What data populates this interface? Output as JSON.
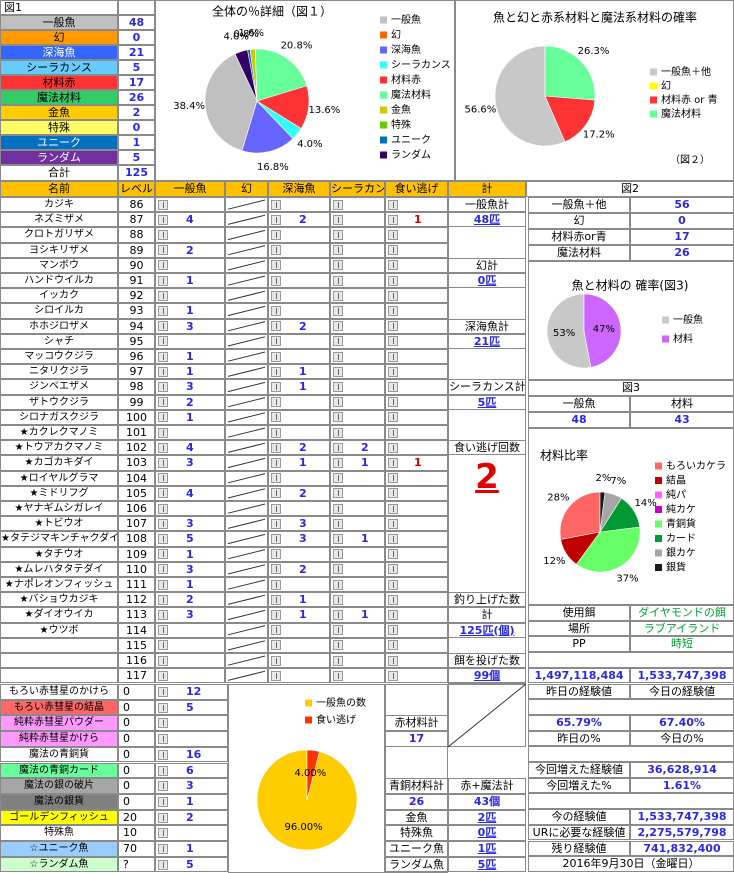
{
  "fig1": {
    "title": "図1",
    "rows": [
      {
        "label": "一般魚",
        "value": 48
      },
      {
        "label": "幻",
        "value": 0
      },
      {
        "label": "深海魚",
        "value": 21
      },
      {
        "label": "シーラカンス",
        "value": 5
      },
      {
        "label": "材料赤",
        "value": 17
      },
      {
        "label": "魔法材料",
        "value": 26
      },
      {
        "label": "金魚",
        "value": 2
      },
      {
        "label": "特殊",
        "value": 0
      },
      {
        "label": "ユニーク",
        "value": 1
      },
      {
        "label": "ランダム",
        "value": 5
      }
    ],
    "total_label": "合計",
    "total": 125
  },
  "chart_data": [
    {
      "type": "pie",
      "title": "全体の％詳細（図１）",
      "categories": [
        "一般魚",
        "幻",
        "深海魚",
        "シーラカンス",
        "材料赤",
        "魔法材料",
        "金魚",
        "特殊",
        "ユニーク",
        "ランダム"
      ],
      "values": [
        38.4,
        0,
        16.8,
        4,
        13.6,
        20.8,
        1.6,
        0,
        0.8,
        4
      ],
      "value_labels": [
        "38.4%",
        null,
        "16.8%",
        "4.0%",
        "13.6%",
        "20.8%",
        "1.6%",
        null,
        "0.8%",
        "4.0%"
      ],
      "colors": [
        "#c0c0c0",
        "#ff6600",
        "#6666ff",
        "#33ffff",
        "#ff3333",
        "#66ff99",
        "#cccc00",
        "#66cc00",
        "#0070c0",
        "#330066"
      ]
    },
    {
      "type": "pie",
      "title": "魚と幻と赤系材料と魔法系材料の確率",
      "annotation": "（図２）",
      "categories": [
        "一般魚＋他",
        "幻",
        "材料赤 or 青",
        "魔法材料"
      ],
      "values": [
        56.6,
        0,
        17.2,
        26.3
      ],
      "value_labels": [
        "56.6%",
        null,
        "17.2%",
        "26.3%"
      ],
      "colors": [
        "#c8c8c8",
        "#ffff00",
        "#ff3333",
        "#66ff99"
      ]
    },
    {
      "type": "pie",
      "title": "魚と材料の 確率(図3)",
      "categories": [
        "一般魚",
        "材料"
      ],
      "values": [
        53,
        47
      ],
      "value_labels": [
        "53%",
        "47%"
      ],
      "colors": [
        "#c8c8c8",
        "#cc66ff"
      ]
    },
    {
      "type": "pie",
      "title": "材料比率",
      "categories": [
        "もろいカケラ",
        "結晶",
        "純パ",
        "純カケ",
        "青銅貨",
        "カード",
        "銀カケ",
        "銀貨"
      ],
      "values": [
        28,
        12,
        0,
        0,
        37,
        14,
        7,
        2
      ],
      "value_labels": [
        "28%",
        "12%",
        null,
        null,
        "37%",
        "14%",
        "7%",
        "2%"
      ],
      "colors": [
        "#ff6666",
        "#c00000",
        "#ff66ff",
        "#cc00cc",
        "#66ff66",
        "#009933",
        "#a6a6a6",
        "#1a1a1a"
      ]
    },
    {
      "type": "pie",
      "categories": [
        "一般魚の数",
        "食い逃げ"
      ],
      "values": [
        96,
        4
      ],
      "value_labels": [
        "96.00%",
        "4.00%"
      ],
      "colors": [
        "#ffcc00",
        "#ff3300"
      ]
    }
  ],
  "main_table": {
    "headers": [
      "名前",
      "レベル",
      "一般魚",
      "幻",
      "深海魚",
      "シーラカンス",
      "食い逃げ",
      "計"
    ],
    "rows": [
      {
        "name": "カジキ",
        "level": 86,
        "counts": [
          null,
          null,
          null,
          null
        ]
      },
      {
        "name": "ネズミザメ",
        "level": 87,
        "counts": [
          4,
          2,
          null,
          1
        ]
      },
      {
        "name": "クロトガリザメ",
        "level": 88,
        "counts": [
          null,
          null,
          null,
          null
        ]
      },
      {
        "name": "ヨシキリザメ",
        "level": 89,
        "counts": [
          2,
          null,
          null,
          null
        ]
      },
      {
        "name": "マンボウ",
        "level": 90,
        "counts": [
          null,
          null,
          null,
          null
        ]
      },
      {
        "name": "ハンドウイルカ",
        "level": 91,
        "counts": [
          1,
          null,
          null,
          null
        ]
      },
      {
        "name": "イッカク",
        "level": 92,
        "counts": [
          null,
          null,
          null,
          null
        ]
      },
      {
        "name": "シロイルカ",
        "level": 93,
        "counts": [
          1,
          null,
          null,
          null
        ]
      },
      {
        "name": "ホホジロザメ",
        "level": 94,
        "counts": [
          3,
          2,
          null,
          null
        ]
      },
      {
        "name": "シャチ",
        "level": 95,
        "counts": [
          null,
          null,
          null,
          null
        ]
      },
      {
        "name": "マッコウクジラ",
        "level": 96,
        "counts": [
          1,
          null,
          null,
          null
        ]
      },
      {
        "name": "ニタリクジラ",
        "level": 97,
        "counts": [
          1,
          1,
          null,
          null
        ]
      },
      {
        "name": "ジンベエザメ",
        "level": 98,
        "counts": [
          3,
          1,
          null,
          null
        ]
      },
      {
        "name": "ザトウクジラ",
        "level": 99,
        "counts": [
          2,
          null,
          null,
          null
        ]
      },
      {
        "name": "シロナガスクジラ",
        "level": 100,
        "counts": [
          1,
          null,
          null,
          null
        ]
      },
      {
        "name": "★カクレクマノミ",
        "level": 101,
        "counts": [
          null,
          null,
          null,
          null
        ]
      },
      {
        "name": "★トウアカクマノミ",
        "level": 102,
        "counts": [
          4,
          2,
          2,
          null
        ]
      },
      {
        "name": "★カゴカキダイ",
        "level": 103,
        "counts": [
          3,
          1,
          1,
          1
        ]
      },
      {
        "name": "★ロイヤルグラマ",
        "level": 104,
        "counts": [
          null,
          null,
          null,
          null
        ]
      },
      {
        "name": "★ミドリフグ",
        "level": 105,
        "counts": [
          4,
          2,
          null,
          null
        ]
      },
      {
        "name": "★ヤナギムシガレイ",
        "level": 106,
        "counts": [
          null,
          null,
          null,
          null
        ]
      },
      {
        "name": "★トビウオ",
        "level": 107,
        "counts": [
          3,
          3,
          null,
          null
        ]
      },
      {
        "name": "★タテジマキンチャクダイ",
        "level": 108,
        "counts": [
          5,
          3,
          1,
          null
        ]
      },
      {
        "name": "★タチウオ",
        "level": 109,
        "counts": [
          1,
          null,
          null,
          null
        ]
      },
      {
        "name": "★ムレハタタテダイ",
        "level": 110,
        "counts": [
          3,
          2,
          null,
          null
        ]
      },
      {
        "name": "★ナポレオンフィッシュ",
        "level": 111,
        "counts": [
          1,
          null,
          null,
          null
        ]
      },
      {
        "name": "★バショウカジキ",
        "level": 112,
        "counts": [
          2,
          1,
          null,
          null
        ]
      },
      {
        "name": "★ダイオウイカ",
        "level": 113,
        "counts": [
          3,
          1,
          1,
          null
        ]
      },
      {
        "name": "★ウツボ",
        "level": 114,
        "counts": [
          null,
          null,
          null,
          null
        ]
      },
      {
        "name": null,
        "level": 115,
        "counts": [
          null,
          null,
          null,
          null
        ]
      },
      {
        "name": null,
        "level": 116,
        "counts": [
          null,
          null,
          null,
          null
        ]
      },
      {
        "name": null,
        "level": 117,
        "counts": [
          null,
          null,
          null,
          null
        ]
      }
    ]
  },
  "totals": [
    {
      "label": "一般魚計",
      "value": "48匹"
    },
    {
      "label": "幻計",
      "value": "0匹"
    },
    {
      "label": "深海魚計",
      "value": "21匹"
    },
    {
      "label": "シーラカンス計",
      "value": "5匹"
    },
    {
      "label": "食い逃げ回数",
      "value": 2
    },
    {
      "label": "釣り上げた数",
      "sub": "計",
      "value": "125匹(個)"
    },
    {
      "label": "餌を投げた数",
      "value": "99個"
    }
  ],
  "materials": [
    {
      "name": "もろい赤彗星のかけら",
      "level": 0,
      "count": 12
    },
    {
      "name": "もろい赤彗星の結晶",
      "level": 0,
      "count": 5
    },
    {
      "name": "純粋赤彗星パウダー",
      "level": 0,
      "count": null
    },
    {
      "name": "純粋赤彗星かけら",
      "level": 0,
      "count": null
    },
    {
      "name": "魔法の青銅貨",
      "level": 0,
      "count": 16
    },
    {
      "name": "魔法の青銅カード",
      "level": 0,
      "count": 6
    },
    {
      "name": "魔法の銀の破片",
      "level": 0,
      "count": 3
    },
    {
      "name": "魔法の銀貨",
      "level": 0,
      "count": 1
    },
    {
      "name": "ゴールデンフィッシュ",
      "level": 20,
      "count": 2
    },
    {
      "name": "特殊魚",
      "level": 10,
      "count": null
    },
    {
      "name": "☆ユニーク魚",
      "level": 70,
      "count": 1
    },
    {
      "name": "☆ランダム魚",
      "level": "?",
      "count": 5
    }
  ],
  "subtotals": [
    {
      "label": "赤材料計",
      "value": 17
    },
    {
      "label": "青銅材料計",
      "value": 26
    },
    {
      "label": "赤+魔法計",
      "value": "43個"
    }
  ],
  "special": [
    {
      "label": "金魚",
      "value": "2匹"
    },
    {
      "label": "特殊魚",
      "value": "0匹"
    },
    {
      "label": "ユニーク魚",
      "value": "1匹"
    },
    {
      "label": "ランダム魚",
      "value": "5匹"
    }
  ],
  "fig2": {
    "title": "図2",
    "rows": [
      {
        "label": "一般魚＋他",
        "value": 56
      },
      {
        "label": "幻",
        "value": 0
      },
      {
        "label": "材料赤or青",
        "value": 17
      },
      {
        "label": "魔法材料",
        "value": 26
      }
    ]
  },
  "fig3": {
    "title": "図3",
    "headers": [
      "一般魚",
      "材料"
    ],
    "values": [
      48,
      43
    ]
  },
  "settings": [
    {
      "label": "使用餌",
      "value": "ダイヤモンドの餌"
    },
    {
      "label": "場所",
      "value": "ラブアイランド"
    },
    {
      "label": "PP",
      "value": "時短"
    }
  ],
  "exp": {
    "yesterday_value": "1,497,118,484",
    "today_value": "1,533,747,398",
    "yesterday_label": "昨日の経験値",
    "today_label": "今日の経験値",
    "yesterday_pct": "65.79%",
    "today_pct": "67.40%",
    "yesterday_pct_label": "昨日の%",
    "today_pct_label": "今日の%",
    "rows": [
      {
        "label": "今回増えた経験値",
        "value": "36,628,914"
      },
      {
        "label": "今回増えた%",
        "value": "1.61%"
      },
      {
        "label": "今の経験値",
        "value": "1,533,747,398"
      },
      {
        "label": "URに必要な経験値",
        "value": "2,275,579,798"
      },
      {
        "label": "残り経験値",
        "value": "741,832,400"
      }
    ],
    "date": "2016年9月30日（金曜日）"
  }
}
